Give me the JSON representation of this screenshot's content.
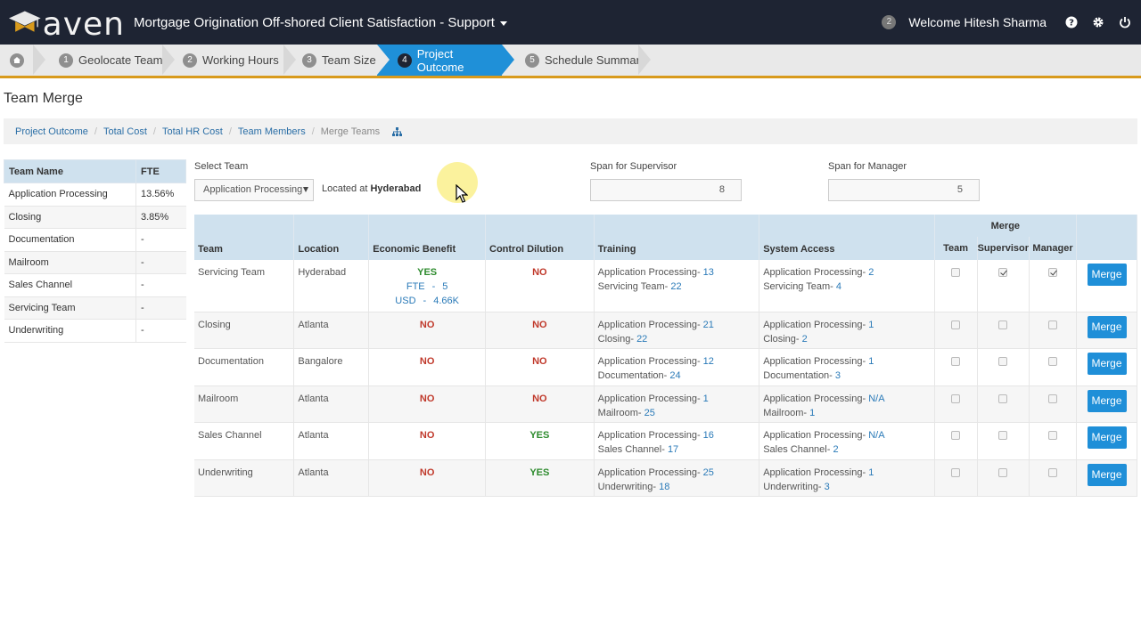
{
  "header": {
    "logo_text": "aven",
    "app_title": "Mortgage Origination Off-shored Client Satisfaction - Support",
    "notification_count": "2",
    "welcome": "Welcome Hitesh Sharma"
  },
  "steps": [
    {
      "num": "1",
      "label": "Geolocate Team"
    },
    {
      "num": "2",
      "label": "Working Hours"
    },
    {
      "num": "3",
      "label": "Team Size"
    },
    {
      "num": "4",
      "label": "Project Outcome"
    },
    {
      "num": "5",
      "label": "Schedule Summary"
    }
  ],
  "page_title": "Team Merge",
  "breadcrumb": [
    "Project Outcome",
    "Total Cost",
    "Total HR Cost",
    "Team Members",
    "Merge Teams"
  ],
  "left_table": {
    "headers": [
      "Team Name",
      "FTE"
    ],
    "rows": [
      [
        "Application Processing",
        "13.56%"
      ],
      [
        "Closing",
        "3.85%"
      ],
      [
        "Documentation",
        "-"
      ],
      [
        "Mailroom",
        "-"
      ],
      [
        "Sales Channel",
        "-"
      ],
      [
        "Servicing Team",
        "-"
      ],
      [
        "Underwriting",
        "-"
      ]
    ]
  },
  "controls": {
    "select_team_label": "Select Team",
    "select_team_value": "Application Processing",
    "located_prefix": "Located at",
    "located_city": "Hyderabad",
    "span_supervisor_label": "Span for Supervisor",
    "span_supervisor_value": "8",
    "span_manager_label": "Span for Manager",
    "span_manager_value": "5"
  },
  "main_table": {
    "headers": {
      "team": "Team",
      "location": "Location",
      "economic_benefit": "Economic Benefit",
      "control_dilution": "Control Dilution",
      "training": "Training",
      "system_access": "System Access",
      "merge": "Merge",
      "merge_team": "Team",
      "merge_supervisor": "Supervisor",
      "merge_manager": "Manager"
    },
    "fte_label": "FTE",
    "fte_sep": "-",
    "fte_value": "5",
    "usd_label": "USD",
    "usd_sep": "-",
    "usd_value": "4.66K",
    "merge_button": "Merge",
    "rows": [
      {
        "team": "Servicing Team",
        "location": "Hyderabad",
        "economic": "YES",
        "control": "NO",
        "training1": "Application Processing- ",
        "training1_val": "13",
        "training2": "Servicing Team- ",
        "training2_val": "22",
        "access1": "Application Processing- ",
        "access1_val": "2",
        "access2": "Servicing Team- ",
        "access2_val": "4"
      },
      {
        "team": "Closing",
        "location": "Atlanta",
        "economic": "NO",
        "control": "NO",
        "training1": "Application Processing- ",
        "training1_val": "21",
        "training2": "Closing- ",
        "training2_val": "22",
        "access1": "Application Processing- ",
        "access1_val": "1",
        "access2": "Closing- ",
        "access2_val": "2"
      },
      {
        "team": "Documentation",
        "location": "Bangalore",
        "economic": "NO",
        "control": "NO",
        "training1": "Application Processing- ",
        "training1_val": "12",
        "training2": "Documentation- ",
        "training2_val": "24",
        "access1": "Application Processing- ",
        "access1_val": "1",
        "access2": "Documentation- ",
        "access2_val": "3"
      },
      {
        "team": "Mailroom",
        "location": "Atlanta",
        "economic": "NO",
        "control": "NO",
        "training1": "Application Processing- ",
        "training1_val": "1",
        "training2": "Mailroom- ",
        "training2_val": "25",
        "access1": "Application Processing- ",
        "access1_val": "N/A",
        "access2": "Mailroom- ",
        "access2_val": "1"
      },
      {
        "team": "Sales Channel",
        "location": "Atlanta",
        "economic": "NO",
        "control": "YES",
        "training1": "Application Processing- ",
        "training1_val": "16",
        "training2": "Sales Channel- ",
        "training2_val": "17",
        "access1": "Application Processing- ",
        "access1_val": "N/A",
        "access2": "Sales Channel- ",
        "access2_val": "2"
      },
      {
        "team": "Underwriting",
        "location": "Atlanta",
        "economic": "NO",
        "control": "YES",
        "training1": "Application Processing- ",
        "training1_val": "25",
        "training2": "Underwriting- ",
        "training2_val": "18",
        "access1": "Application Processing- ",
        "access1_val": "1",
        "access2": "Underwriting- ",
        "access2_val": "3"
      }
    ]
  },
  "colors": {
    "accent": "#1f90d8",
    "header_bg": "#1e2433",
    "gold": "#d89a1c",
    "no": "#c0392b",
    "yes": "#2e8b2e"
  }
}
